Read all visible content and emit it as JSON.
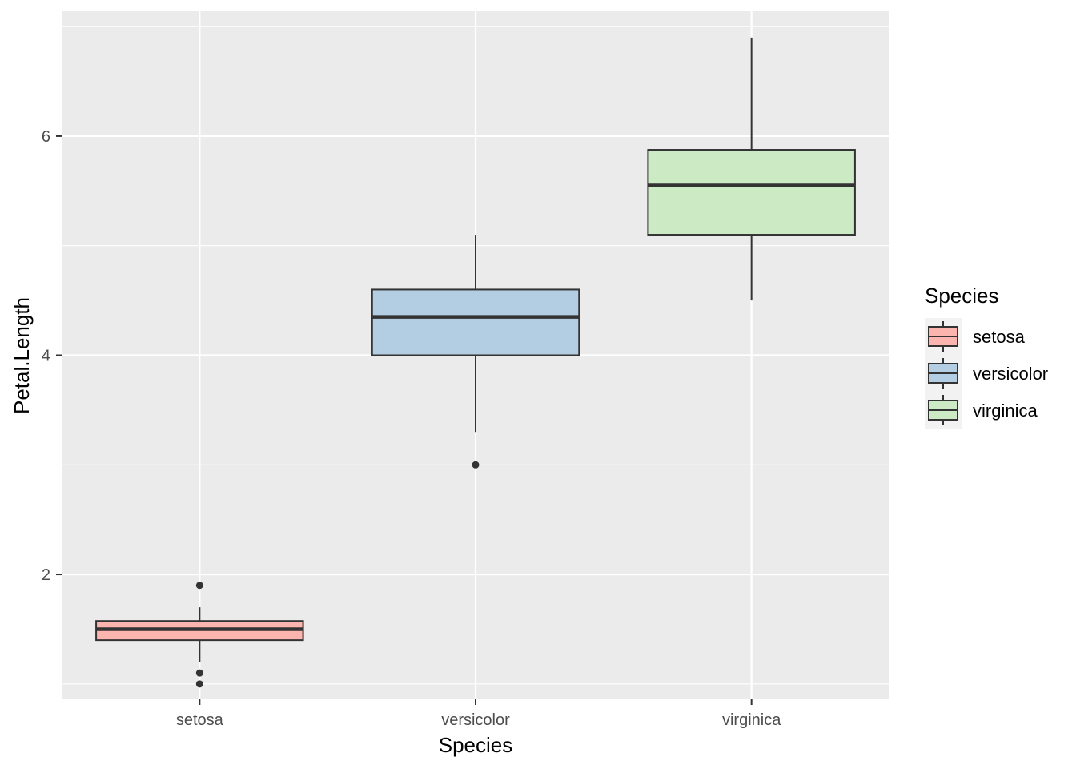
{
  "chart_data": {
    "type": "boxplot",
    "xlabel": "Species",
    "ylabel": "Petal.Length",
    "ylim": [
      0.86,
      7.14
    ],
    "y_ticks": [
      2,
      4,
      6
    ],
    "y_minor_ticks": [
      1,
      3,
      5,
      7
    ],
    "grid": true,
    "legend": {
      "title": "Species",
      "position": "right"
    },
    "categories": [
      "setosa",
      "versicolor",
      "virginica"
    ],
    "series": [
      {
        "name": "setosa",
        "color": "#FBB4AE",
        "whisker_low": 1.2,
        "q1": 1.4,
        "median": 1.5,
        "q3": 1.575,
        "whisker_high": 1.7,
        "outliers": [
          1.0,
          1.1,
          1.9
        ]
      },
      {
        "name": "versicolor",
        "color": "#B3CDE3",
        "whisker_low": 3.3,
        "q1": 4.0,
        "median": 4.35,
        "q3": 4.6,
        "whisker_high": 5.1,
        "outliers": [
          3.0
        ]
      },
      {
        "name": "virginica",
        "color": "#CCEBC5",
        "whisker_low": 4.5,
        "q1": 5.1,
        "median": 5.55,
        "q3": 5.875,
        "whisker_high": 6.9,
        "outliers": []
      }
    ]
  }
}
